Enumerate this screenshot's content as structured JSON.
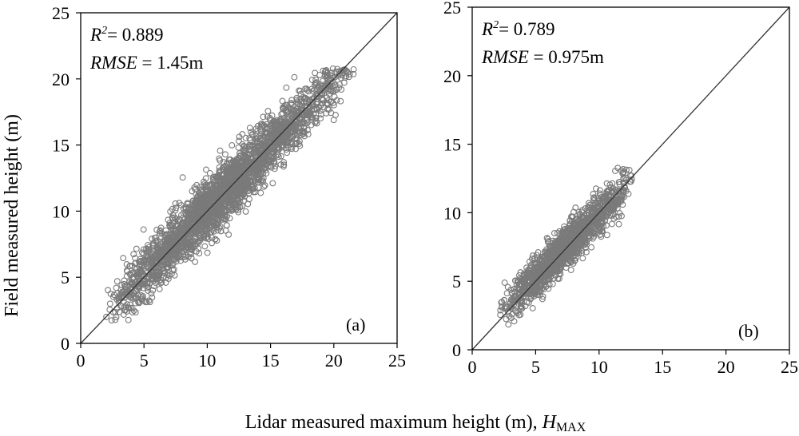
{
  "figure": {
    "xlabel_main": "Lidar measured maximum height (m), ",
    "xlabel_symbol": "H",
    "xlabel_subscript": "MAX",
    "ylabel": "Field measured height (m)"
  },
  "chart_data": [
    {
      "type": "scatter",
      "panel_label": "(a)",
      "xlim": [
        0,
        25
      ],
      "ylim": [
        0,
        25
      ],
      "xticks": [
        "0",
        "5",
        "10",
        "15",
        "20",
        "25"
      ],
      "yticks": [
        "0",
        "5",
        "10",
        "15",
        "20",
        "25"
      ],
      "r2_symbol": "R",
      "r2_sup": "2",
      "r2_value": "= 0.889",
      "rmse_symbol": "RMSE",
      "rmse_value": " = 1.45m",
      "reference_line": "1:1",
      "marker_color": "#7a7a7a",
      "n_points": 2600,
      "point_cloud": {
        "x_range": [
          1.8,
          21.8
        ],
        "x_mode": 10.5,
        "y_slope": 0.97,
        "y_intercept": 0.4,
        "y_sd": 1.45,
        "seed": 7
      }
    },
    {
      "type": "scatter",
      "panel_label": "(b)",
      "xlim": [
        0,
        25
      ],
      "ylim": [
        0,
        25
      ],
      "xticks": [
        "0",
        "5",
        "10",
        "15",
        "20",
        "25"
      ],
      "yticks": [
        "0",
        "5",
        "10",
        "15",
        "20",
        "25"
      ],
      "r2_symbol": "R",
      "r2_sup": "2",
      "r2_value": "= 0.789",
      "rmse_symbol": "RMSE",
      "rmse_value": " = 0.975m",
      "reference_line": "1:1",
      "marker_color": "#7a7a7a",
      "n_points": 1500,
      "point_cloud": {
        "x_range": [
          2.0,
          13.0
        ],
        "x_mode": 7.0,
        "y_slope": 0.93,
        "y_intercept": 0.6,
        "y_sd": 1.0,
        "seed": 13
      }
    }
  ]
}
